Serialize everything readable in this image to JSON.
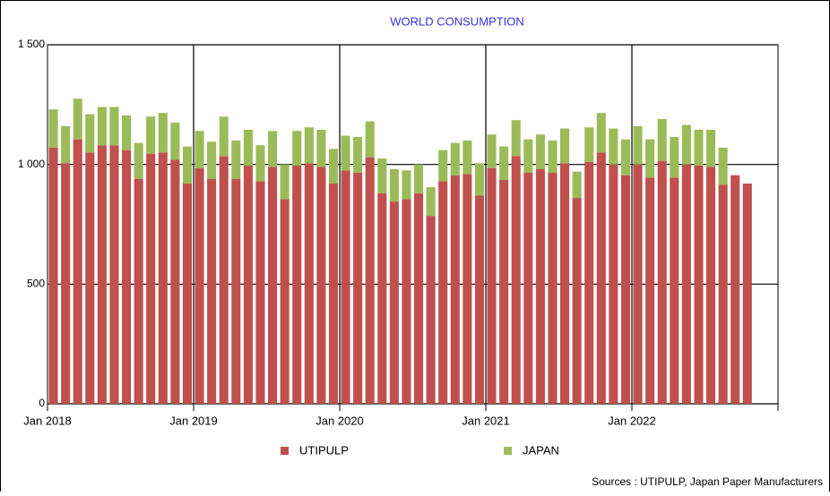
{
  "chart_data": {
    "type": "stacked_bar",
    "title": "WORLD CONSUMPTION",
    "categories": [
      "Jan 2018",
      null,
      null,
      null,
      null,
      null,
      null,
      null,
      null,
      null,
      null,
      null,
      "Jan 2019",
      null,
      null,
      null,
      null,
      null,
      null,
      null,
      null,
      null,
      null,
      null,
      "Jan 2020",
      null,
      null,
      null,
      null,
      null,
      null,
      null,
      null,
      null,
      null,
      null,
      "Jan 2021",
      null,
      null,
      null,
      null,
      null,
      null,
      null,
      null,
      null,
      null,
      null,
      "Jan 2022",
      null,
      null,
      null,
      null,
      null,
      null,
      null,
      null,
      null,
      null,
      null
    ],
    "series": [
      {
        "name": "UTIPULP",
        "color": "#c0504d",
        "values": [
          1070,
          1005,
          1105,
          1050,
          1080,
          1080,
          1060,
          940,
          1045,
          1050,
          1020,
          920,
          985,
          940,
          1035,
          940,
          995,
          930,
          990,
          855,
          995,
          1005,
          990,
          920,
          975,
          965,
          1030,
          880,
          845,
          855,
          880,
          785,
          930,
          955,
          960,
          870,
          985,
          935,
          1035,
          965,
          980,
          965,
          1005,
          860,
          1010,
          1050,
          1000,
          955,
          1000,
          945,
          1015,
          945,
          1000,
          995,
          990,
          915,
          955,
          920,
          null,
          null
        ]
      },
      {
        "name": "JAPAN",
        "color": "#9bbb59",
        "values": [
          160,
          155,
          170,
          160,
          160,
          160,
          145,
          150,
          155,
          165,
          155,
          155,
          155,
          155,
          165,
          160,
          150,
          150,
          150,
          145,
          145,
          150,
          155,
          145,
          145,
          150,
          150,
          145,
          135,
          120,
          120,
          120,
          130,
          135,
          140,
          135,
          140,
          140,
          150,
          140,
          145,
          135,
          145,
          110,
          145,
          165,
          150,
          150,
          160,
          160,
          175,
          170,
          165,
          150,
          155,
          155,
          null,
          null,
          null,
          null
        ]
      }
    ],
    "ylim": [
      0,
      1500
    ],
    "yticks": [
      0,
      500,
      {
        "value": 1000,
        "label": "1 000"
      },
      {
        "value": 1500,
        "label": "1 500"
      }
    ],
    "grid": true,
    "legend": "bottom",
    "source": "Sources : UTIPULP, Japan Paper Manufacturers"
  }
}
